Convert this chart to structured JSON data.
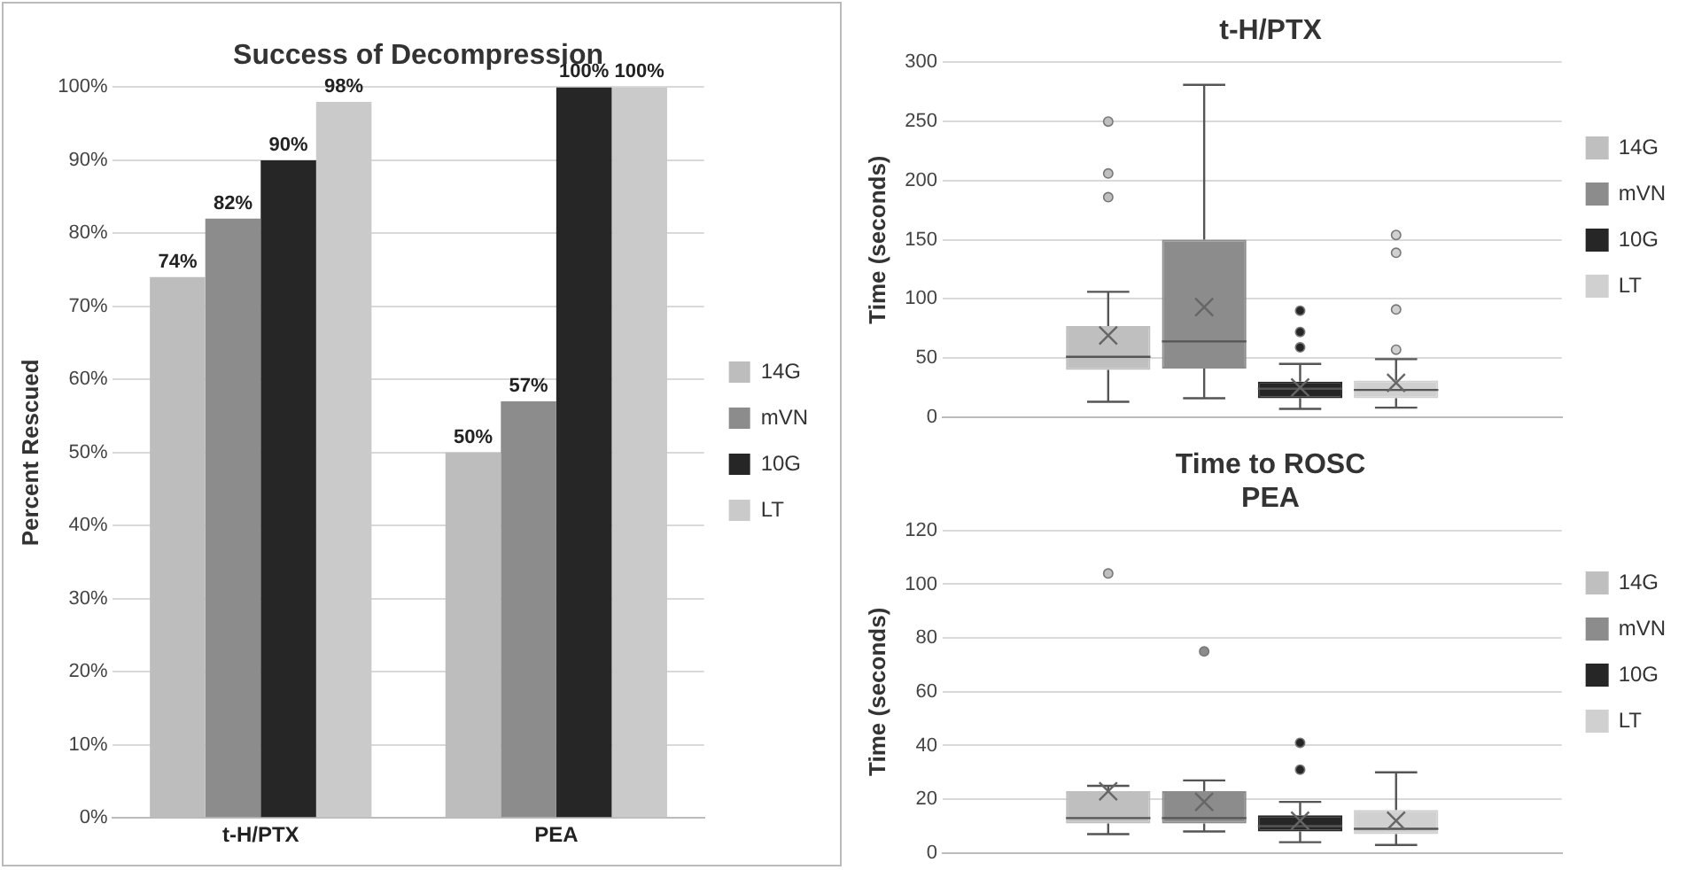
{
  "chart_data": [
    {
      "type": "bar",
      "title": "Success of Decompression",
      "ylabel": "Percent Rescued",
      "categories": [
        "t-H/PTX",
        "PEA"
      ],
      "series": [
        {
          "name": "14G",
          "color": "#bdbdbd",
          "values": [
            74,
            50
          ],
          "value_labels": [
            "74%",
            "50%"
          ]
        },
        {
          "name": "mVN",
          "color": "#8c8c8c",
          "values": [
            82,
            57
          ],
          "value_labels": [
            "82%",
            "57%"
          ]
        },
        {
          "name": "10G",
          "color": "#262626",
          "values": [
            90,
            100
          ],
          "value_labels": [
            "90%",
            "100%"
          ]
        },
        {
          "name": "LT",
          "color": "#cacaca",
          "values": [
            98,
            100
          ],
          "value_labels": [
            "98%",
            "100%"
          ]
        }
      ],
      "ylim": [
        0,
        100
      ],
      "yticks": [
        {
          "value": 0,
          "label": "0%"
        },
        {
          "value": 10,
          "label": "10%"
        },
        {
          "value": 20,
          "label": "20%"
        },
        {
          "value": 30,
          "label": "30%"
        },
        {
          "value": 40,
          "label": "40%"
        },
        {
          "value": 50,
          "label": "50%"
        },
        {
          "value": 60,
          "label": "60%"
        },
        {
          "value": 70,
          "label": "70%"
        },
        {
          "value": 80,
          "label": "80%"
        },
        {
          "value": 90,
          "label": "90%"
        },
        {
          "value": 100,
          "label": "100%"
        }
      ],
      "grid": "y",
      "legend": "right"
    },
    {
      "type": "box",
      "title": "t-H/PTX",
      "ylabel": "Time (seconds)",
      "categories": [
        null
      ],
      "series": [
        {
          "name": "14G",
          "color": "#bfbfbf",
          "boxes": [
            {
              "low": 13,
              "q1": 40,
              "median": 51,
              "q3": 77,
              "high": 106,
              "mean": 69,
              "outliers": [
                250,
                206,
                186
              ]
            }
          ]
        },
        {
          "name": "mVN",
          "color": "#8c8c8c",
          "boxes": [
            {
              "low": 16,
              "q1": 41,
              "median": 64,
              "q3": 150,
              "high": 281,
              "mean": 93
            }
          ]
        },
        {
          "name": "10G",
          "color": "#262626",
          "boxes": [
            {
              "low": 7,
              "q1": 16,
              "median": 24,
              "q3": 30,
              "high": 45,
              "mean": 25,
              "outliers": [
                90,
                72,
                59
              ]
            }
          ]
        },
        {
          "name": "LT",
          "color": "#d0d0d0",
          "boxes": [
            {
              "low": 8,
              "q1": 16,
              "median": 23,
              "q3": 31,
              "high": 49,
              "mean": 29,
              "outliers": [
                154,
                139,
                91,
                57
              ]
            }
          ]
        }
      ],
      "ylim": [
        0,
        300
      ],
      "yticks": [
        0,
        50,
        100,
        150,
        200,
        250,
        300
      ],
      "grid": "y",
      "legend": "right",
      "tick_labels": "y"
    },
    {
      "type": "box",
      "title": "Time to ROSC",
      "subtitle": "PEA",
      "ylabel": "Time (seconds)",
      "categories": [
        null
      ],
      "series": [
        {
          "name": "14G",
          "color": "#bfbfbf",
          "boxes": [
            {
              "low": 7,
              "q1": 11,
              "median": 13,
              "q3": 23,
              "high": 25,
              "mean": 23,
              "outliers": [
                104
              ]
            }
          ]
        },
        {
          "name": "mVN",
          "color": "#8c8c8c",
          "boxes": [
            {
              "low": 8,
              "q1": 11,
              "median": 13,
              "q3": 23,
              "high": 27,
              "mean": 19,
              "outliers": [
                75
              ]
            }
          ]
        },
        {
          "name": "10G",
          "color": "#262626",
          "boxes": [
            {
              "low": 4,
              "q1": 8,
              "median": 10,
              "q3": 14,
              "high": 19,
              "mean": 12,
              "outliers": [
                41,
                31
              ]
            }
          ]
        },
        {
          "name": "LT",
          "color": "#d0d0d0",
          "boxes": [
            {
              "low": 3,
              "q1": 7,
              "median": 9,
              "q3": 16,
              "high": 30,
              "mean": 12
            }
          ]
        }
      ],
      "ylim": [
        0,
        120
      ],
      "yticks": [
        0,
        20,
        40,
        60,
        80,
        100,
        120
      ],
      "grid": "y",
      "legend": "right",
      "tick_labels": "y"
    }
  ]
}
